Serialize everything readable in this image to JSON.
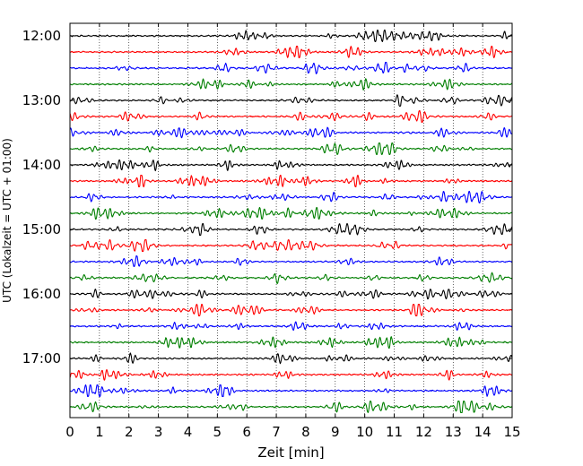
{
  "chart_data": {
    "type": "line",
    "title": "",
    "xlabel": "Zeit  [min]",
    "ylabel": "UTC (Lokalzeit = UTC + 01:00)",
    "xlim": [
      0,
      15
    ],
    "x_ticks": [
      "0",
      "1",
      "2",
      "3",
      "4",
      "5",
      "6",
      "7",
      "8",
      "9",
      "10",
      "11",
      "12",
      "13",
      "14",
      "15"
    ],
    "y_ticks": [
      "12:00",
      "13:00",
      "14:00",
      "15:00",
      "16:00",
      "17:00"
    ],
    "grid": "vertical dotted lines at each minute",
    "row_interval_minutes": 15,
    "trace_count": 24,
    "trace_color_cycle": [
      "#000000",
      "#ff0000",
      "#0000ff",
      "#007f00"
    ],
    "first_row": "12:00",
    "last_row": "17:45"
  }
}
